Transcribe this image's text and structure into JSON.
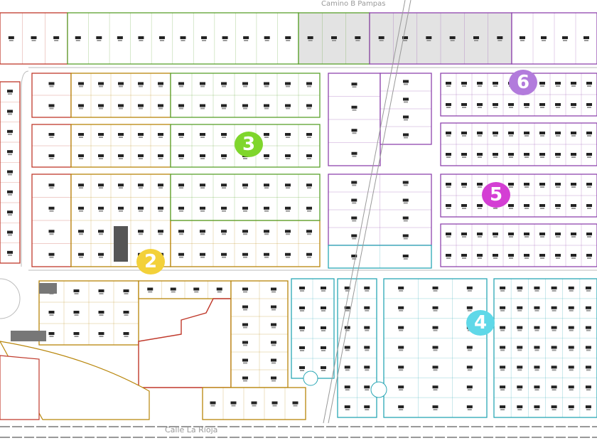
{
  "streets": {
    "top": "Camino B Pampas",
    "bottom": "Calle La Rioja"
  },
  "zones": [
    {
      "number": "2",
      "color": "#f3d13a"
    },
    {
      "number": "3",
      "color": "#7fd62c"
    },
    {
      "number": "4",
      "color": "#5fd8e8"
    },
    {
      "number": "5",
      "color": "#d43fd4"
    },
    {
      "number": "6",
      "color": "#b27bdc"
    }
  ],
  "zone_line_colors": {
    "red": "#c0392b",
    "brown": "#b8860b",
    "green": "#5aa02c",
    "purple": "#8e44ad",
    "teal": "#2aa7b5"
  }
}
